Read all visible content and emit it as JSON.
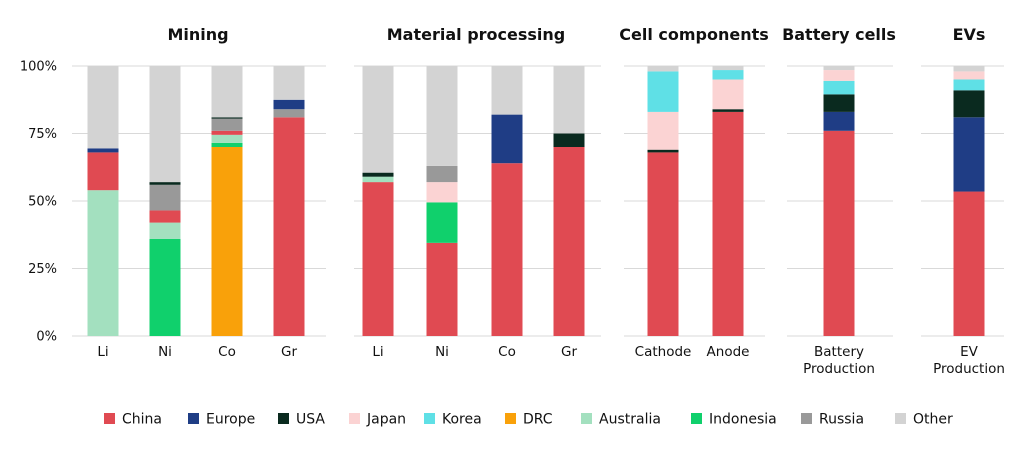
{
  "chart_data": {
    "type": "bar",
    "stacked": true,
    "y_tick_labels": [
      "100%",
      "75%",
      "50%",
      "25%",
      "0%"
    ],
    "ylim": [
      0,
      100
    ],
    "grid": true,
    "legend_position": "bottom",
    "legend": [
      {
        "name": "China",
        "color": "#e04a52"
      },
      {
        "name": "Europe",
        "color": "#1f3d85"
      },
      {
        "name": "USA",
        "color": "#0a2a1f"
      },
      {
        "name": "Japan",
        "color": "#fbd3d3"
      },
      {
        "name": "Korea",
        "color": "#5fe0e6"
      },
      {
        "name": "DRC",
        "color": "#f9a10a"
      },
      {
        "name": "Australia",
        "color": "#a3e0bf"
      },
      {
        "name": "Indonesia",
        "color": "#10d06c"
      },
      {
        "name": "Russia",
        "color": "#999999"
      },
      {
        "name": "Other",
        "color": "#d3d3d3"
      }
    ],
    "panels": [
      {
        "title": "Mining",
        "bars": [
          {
            "label": [
              "Li"
            ],
            "segments": [
              {
                "name": "Australia",
                "value": 54
              },
              {
                "name": "China",
                "value": 14
              },
              {
                "name": "Europe",
                "value": 1.5
              },
              {
                "name": "Other",
                "value": 30.5
              }
            ]
          },
          {
            "label": [
              "Ni"
            ],
            "segments": [
              {
                "name": "Indonesia",
                "value": 36
              },
              {
                "name": "Australia",
                "value": 6
              },
              {
                "name": "China",
                "value": 4.5
              },
              {
                "name": "Russia",
                "value": 9.5
              },
              {
                "name": "USA",
                "value": 1
              },
              {
                "name": "Other",
                "value": 43
              }
            ]
          },
          {
            "label": [
              "Co"
            ],
            "segments": [
              {
                "name": "DRC",
                "value": 70
              },
              {
                "name": "Indonesia",
                "value": 1.5
              },
              {
                "name": "Australia",
                "value": 3
              },
              {
                "name": "China",
                "value": 1.5
              },
              {
                "name": "Russia",
                "value": 4.5
              },
              {
                "name": "USA",
                "value": 0.5
              },
              {
                "name": "Other",
                "value": 19
              }
            ]
          },
          {
            "label": [
              "Gr"
            ],
            "segments": [
              {
                "name": "China",
                "value": 81
              },
              {
                "name": "Russia",
                "value": 3
              },
              {
                "name": "Europe",
                "value": 3.5
              },
              {
                "name": "Other",
                "value": 12.5
              }
            ]
          }
        ]
      },
      {
        "title": "Material processing",
        "bars": [
          {
            "label": [
              "Li"
            ],
            "segments": [
              {
                "name": "China",
                "value": 57
              },
              {
                "name": "Australia",
                "value": 2
              },
              {
                "name": "USA",
                "value": 1.5
              },
              {
                "name": "Other",
                "value": 39.5
              }
            ]
          },
          {
            "label": [
              "Ni"
            ],
            "segments": [
              {
                "name": "China",
                "value": 34.5
              },
              {
                "name": "Indonesia",
                "value": 15
              },
              {
                "name": "Japan",
                "value": 7.5
              },
              {
                "name": "Russia",
                "value": 6
              },
              {
                "name": "Other",
                "value": 37
              }
            ]
          },
          {
            "label": [
              "Co"
            ],
            "segments": [
              {
                "name": "China",
                "value": 64
              },
              {
                "name": "Europe",
                "value": 18
              },
              {
                "name": "Other",
                "value": 18
              }
            ]
          },
          {
            "label": [
              "Gr"
            ],
            "segments": [
              {
                "name": "China",
                "value": 70
              },
              {
                "name": "USA",
                "value": 5
              },
              {
                "name": "Other",
                "value": 25
              }
            ]
          }
        ]
      },
      {
        "title": "Cell components",
        "bars": [
          {
            "label": [
              "Cathode"
            ],
            "segments": [
              {
                "name": "China",
                "value": 68
              },
              {
                "name": "USA",
                "value": 1
              },
              {
                "name": "Japan",
                "value": 14
              },
              {
                "name": "Korea",
                "value": 15
              },
              {
                "name": "Other",
                "value": 2
              }
            ]
          },
          {
            "label": [
              "Anode"
            ],
            "segments": [
              {
                "name": "China",
                "value": 83
              },
              {
                "name": "USA",
                "value": 1
              },
              {
                "name": "Japan",
                "value": 11
              },
              {
                "name": "Korea",
                "value": 3.5
              },
              {
                "name": "Other",
                "value": 1.5
              }
            ]
          }
        ]
      },
      {
        "title": "Battery cells",
        "bars": [
          {
            "label": [
              "Battery",
              "Production"
            ],
            "segments": [
              {
                "name": "China",
                "value": 76
              },
              {
                "name": "Europe",
                "value": 7
              },
              {
                "name": "USA",
                "value": 6.5
              },
              {
                "name": "Korea",
                "value": 5
              },
              {
                "name": "Japan",
                "value": 4
              },
              {
                "name": "Other",
                "value": 1.5
              }
            ]
          }
        ]
      },
      {
        "title": "EVs",
        "bars": [
          {
            "label": [
              "EV",
              "Production"
            ],
            "segments": [
              {
                "name": "China",
                "value": 53.5
              },
              {
                "name": "Europe",
                "value": 27.5
              },
              {
                "name": "USA",
                "value": 10
              },
              {
                "name": "Korea",
                "value": 4
              },
              {
                "name": "Japan",
                "value": 3
              },
              {
                "name": "Other",
                "value": 2
              }
            ]
          }
        ]
      }
    ]
  }
}
